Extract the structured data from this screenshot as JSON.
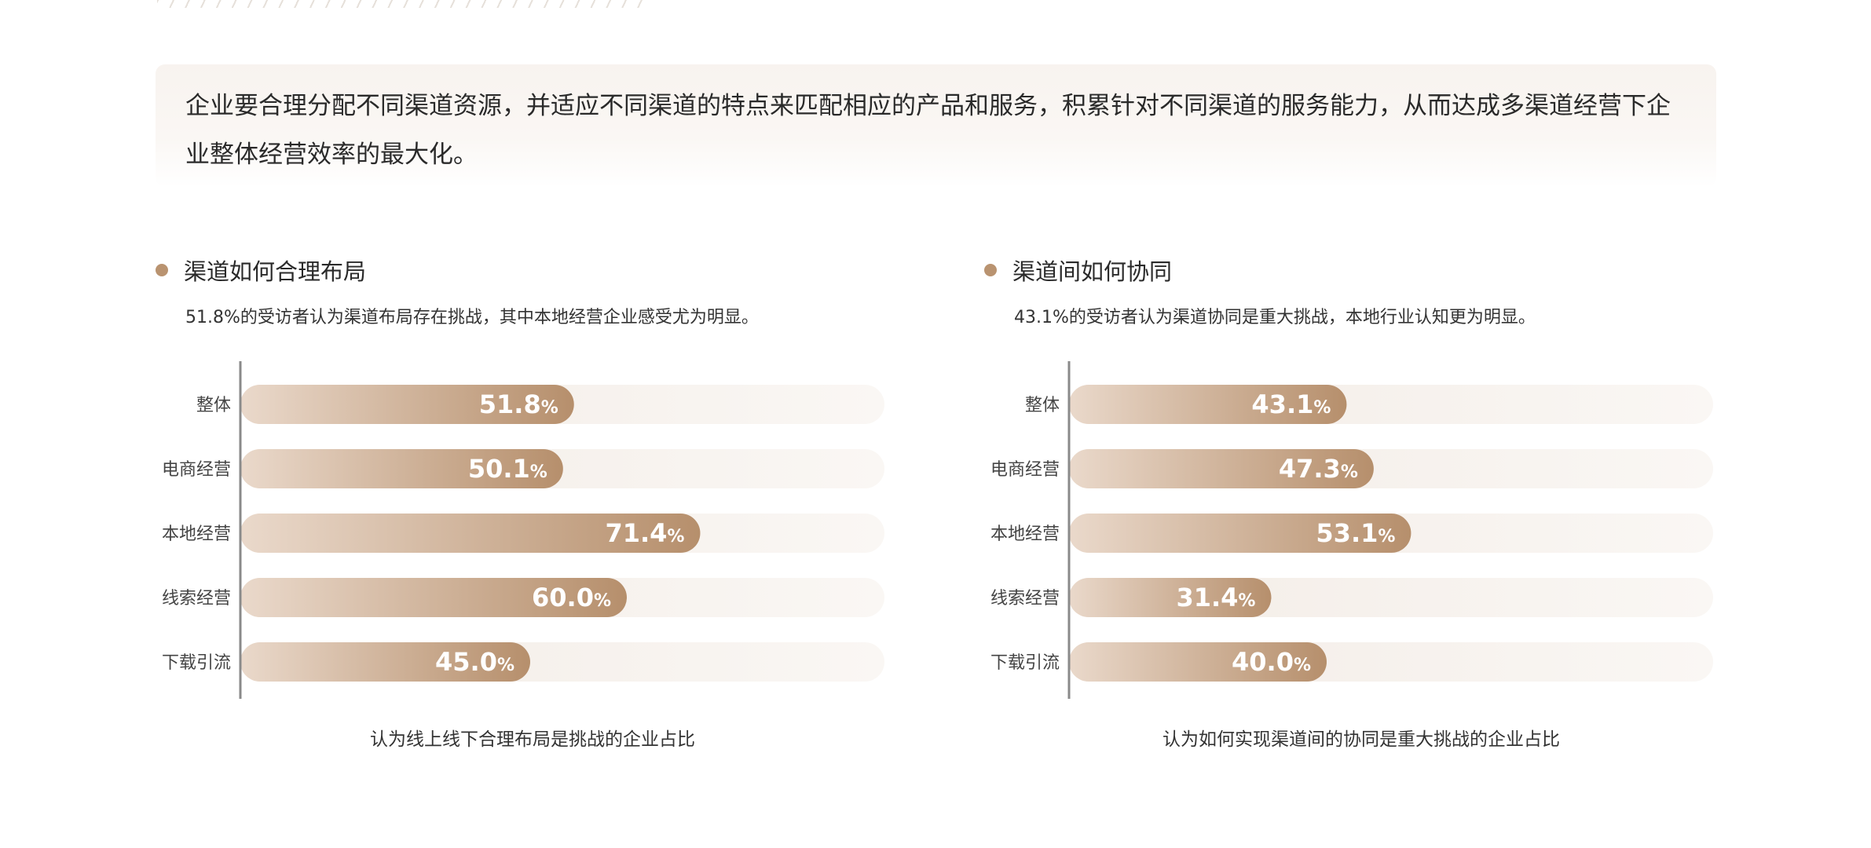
{
  "intro": {
    "text": "企业要合理分配不同渠道资源，并适应不同渠道的特点来匹配相应的产品和服务，积累针对不同渠道的服务能力，从而达成多渠道经营下企业整体经营效率的最大化。"
  },
  "panels": [
    {
      "title": "渠道如何合理布局",
      "description": "51.8%的受访者认为渠道布局存在挑战，其中本地经营企业感受尤为明显。",
      "caption": "认为线上线下合理布局是挑战的企业占比"
    },
    {
      "title": "渠道间如何协同",
      "description": "43.1%的受访者认为渠道协同是重大挑战，本地行业认知更为明显。",
      "caption": "认为如何实现渠道间的协同是重大挑战的企业占比"
    }
  ],
  "chart_data": [
    {
      "type": "bar",
      "orientation": "horizontal",
      "categories": [
        "整体",
        "电商经营",
        "本地经营",
        "线索经营",
        "下载引流"
      ],
      "values": [
        51.8,
        50.1,
        71.4,
        60.0,
        45.0
      ],
      "labels": [
        "51.8",
        "50.1",
        "71.4",
        "60.0",
        "45.0"
      ],
      "unit": "%",
      "xlim": [
        0,
        100
      ],
      "title": "认为线上线下合理布局是挑战的企业占比"
    },
    {
      "type": "bar",
      "orientation": "horizontal",
      "categories": [
        "整体",
        "电商经营",
        "本地经营",
        "线索经营",
        "下载引流"
      ],
      "values": [
        43.1,
        47.3,
        53.1,
        31.4,
        40.0
      ],
      "labels": [
        "43.1",
        "47.3",
        "53.1",
        "31.4",
        "40.0"
      ],
      "unit": "%",
      "xlim": [
        0,
        100
      ],
      "title": "认为如何实现渠道间的协同是重大挑战的企业占比"
    }
  ],
  "colors": {
    "bar_start": "#ead9cb",
    "bar_end": "#b68f6c",
    "track": "#f6f1ec",
    "axis": "#8a8a8a",
    "accent_dot": "#b99370"
  }
}
